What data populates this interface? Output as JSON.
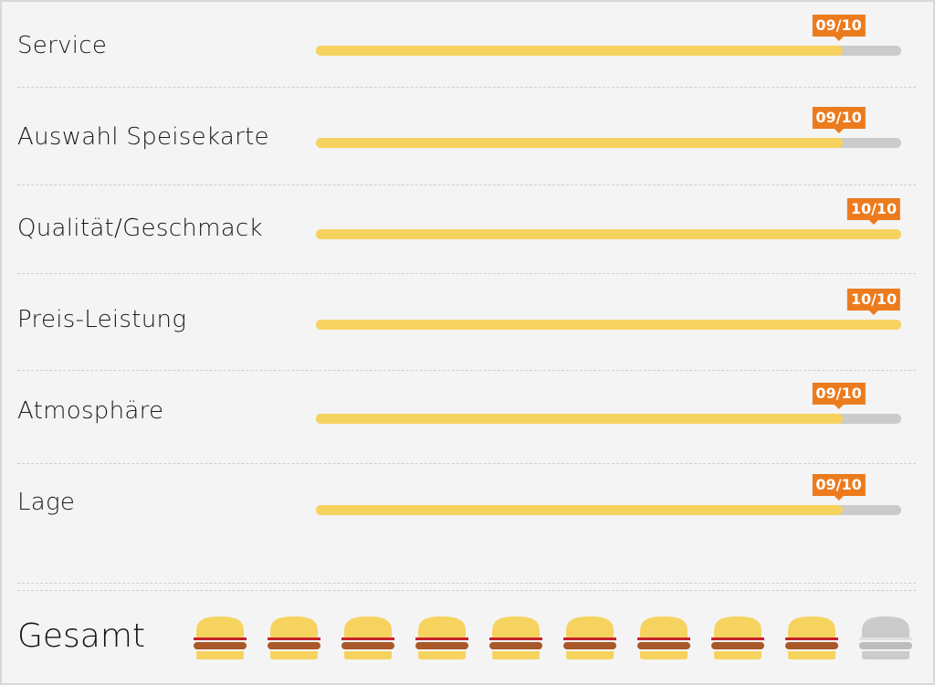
{
  "ratings": [
    {
      "label": "Service",
      "score": 9,
      "max": 10,
      "badge": "09/10"
    },
    {
      "label": "Auswahl Speisekarte",
      "score": 9,
      "max": 10,
      "badge": "09/10"
    },
    {
      "label": "Qualität/Geschmack",
      "score": 10,
      "max": 10,
      "badge": "10/10"
    },
    {
      "label": "Preis-Leistung",
      "score": 10,
      "max": 10,
      "badge": "10/10"
    },
    {
      "label": "Atmosphäre",
      "score": 9,
      "max": 10,
      "badge": "09/10"
    },
    {
      "label": "Lage",
      "score": 9,
      "max": 10,
      "badge": "09/10"
    }
  ],
  "total": {
    "label": "Gesamt",
    "burgers_filled": 9,
    "burgers_total": 10
  },
  "colors": {
    "bar_fill": "#f6d35f",
    "bar_track": "#cbcbcb",
    "badge": "#ec7b1e",
    "bun": "#f6d35f",
    "patty": "#a9582a",
    "ketchup": "#c8202e",
    "empty": "#cbcbcb"
  }
}
